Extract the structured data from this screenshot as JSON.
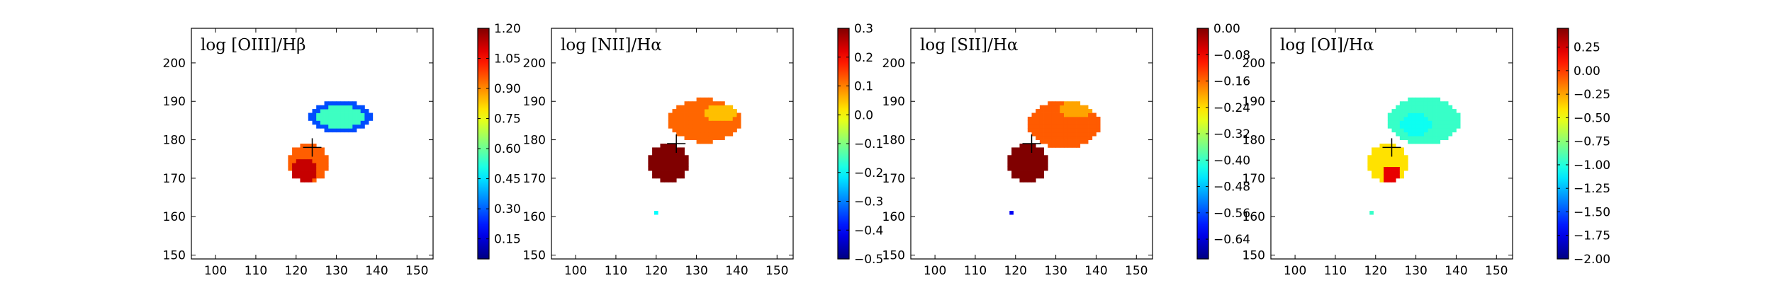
{
  "chart_data": [
    {
      "type": "heatmap",
      "title": "log [OIII]/Hβ",
      "xlim": [
        94,
        154
      ],
      "ylim": [
        149,
        209
      ],
      "x_ticks": [
        100,
        110,
        120,
        130,
        140,
        150
      ],
      "y_ticks": [
        150,
        160,
        170,
        180,
        190,
        200
      ],
      "marker": {
        "symbol": "+",
        "x": 124,
        "y": 178
      },
      "colorbar": {
        "vmin": 0.05,
        "vmax": 1.2,
        "ticks": [
          0.15,
          0.3,
          0.45,
          0.6,
          0.75,
          0.9,
          1.05,
          1.2
        ],
        "tick_labels": [
          "0.15",
          "0.30",
          "0.45",
          "0.60",
          "0.75",
          "0.90",
          "1.05",
          "1.20"
        ]
      },
      "regions": [
        {
          "name": "north",
          "cx": 131,
          "cy": 186,
          "rx": 8,
          "ry": 4.2,
          "value": 0.28,
          "inner": {
            "cx": 131,
            "cy": 186,
            "rx": 6,
            "ry": 3,
            "value": 0.55
          }
        },
        {
          "name": "south",
          "cx": 123,
          "cy": 174,
          "rx": 4.8,
          "ry": 5.2,
          "value": 0.95,
          "inner": {
            "cx": 122,
            "cy": 172,
            "rx": 3,
            "ry": 3,
            "value": 1.12
          }
        }
      ],
      "outlier": null
    },
    {
      "type": "heatmap",
      "title": "log [NII]/Hα",
      "xlim": [
        94,
        154
      ],
      "ylim": [
        149,
        209
      ],
      "x_ticks": [
        100,
        110,
        120,
        130,
        140,
        150
      ],
      "y_ticks": [
        150,
        160,
        170,
        180,
        190,
        200
      ],
      "marker": {
        "symbol": "+",
        "x": 125,
        "y": 179
      },
      "colorbar": {
        "vmin": -0.5,
        "vmax": 0.3,
        "ticks": [
          -0.5,
          -0.4,
          -0.3,
          -0.2,
          -0.1,
          0.0,
          0.1,
          0.2,
          0.3
        ],
        "tick_labels": [
          "−0.5",
          "−0.4",
          "−0.3",
          "−0.2",
          "−0.1",
          "0.0",
          "0.1",
          "0.2",
          "0.3"
        ]
      },
      "regions": [
        {
          "name": "north",
          "cx": 132,
          "cy": 185,
          "rx": 9,
          "ry": 5.6,
          "value": 0.12,
          "inner": {
            "cx": 136,
            "cy": 187,
            "rx": 4,
            "ry": 2.5,
            "value": 0.05
          }
        },
        {
          "name": "south",
          "cx": 123,
          "cy": 174,
          "rx": 4.8,
          "ry": 5.2,
          "value": 0.3,
          "inner": null
        }
      ],
      "outlier": {
        "x": 120,
        "y": 161,
        "value": -0.2
      }
    },
    {
      "type": "heatmap",
      "title": "log [SII]/Hα",
      "xlim": [
        94,
        154
      ],
      "ylim": [
        149,
        209
      ],
      "x_ticks": [
        100,
        110,
        120,
        130,
        140,
        150
      ],
      "y_ticks": [
        150,
        160,
        170,
        180,
        190,
        200
      ],
      "marker": {
        "symbol": "+",
        "x": 124,
        "y": 179
      },
      "colorbar": {
        "vmin": -0.7,
        "vmax": 0.0,
        "ticks": [
          -0.64,
          -0.56,
          -0.48,
          -0.4,
          -0.32,
          -0.24,
          -0.16,
          -0.08,
          0.0
        ],
        "tick_labels": [
          "−0.64",
          "−0.56",
          "−0.48",
          "−0.40",
          "−0.32",
          "−0.24",
          "−0.16",
          "−0.08",
          "0.00"
        ]
      },
      "regions": [
        {
          "name": "north",
          "cx": 132,
          "cy": 184,
          "rx": 9,
          "ry": 6,
          "value": -0.15,
          "inner": {
            "cx": 135,
            "cy": 188,
            "rx": 4,
            "ry": 2.5,
            "value": -0.2
          }
        },
        {
          "name": "south",
          "cx": 123,
          "cy": 174,
          "rx": 4.8,
          "ry": 5.2,
          "value": 0.0,
          "inner": null
        }
      ],
      "outlier": {
        "x": 119,
        "y": 161,
        "value": -0.62
      }
    },
    {
      "type": "heatmap",
      "title": "log [OI]/Hα",
      "xlim": [
        94,
        154
      ],
      "ylim": [
        149,
        209
      ],
      "x_ticks": [
        100,
        110,
        120,
        130,
        140,
        150
      ],
      "y_ticks": [
        150,
        160,
        170,
        180,
        190,
        200
      ],
      "marker": {
        "symbol": "+",
        "x": 124,
        "y": 178
      },
      "colorbar": {
        "vmin": -2.0,
        "vmax": 0.45,
        "ticks": [
          -2.0,
          -1.75,
          -1.5,
          -1.25,
          -1.0,
          -0.75,
          -0.5,
          -0.25,
          0.0,
          0.25
        ],
        "tick_labels": [
          "−2.00",
          "−1.75",
          "−1.50",
          "−1.25",
          "−1.00",
          "−0.75",
          "−0.50",
          "−0.25",
          "0.00",
          "0.25"
        ]
      },
      "regions": [
        {
          "name": "north",
          "cx": 132,
          "cy": 185,
          "rx": 9,
          "ry": 6,
          "value": -0.95,
          "inner": {
            "cx": 130,
            "cy": 184,
            "rx": 4,
            "ry": 3,
            "value": -1.05
          }
        },
        {
          "name": "south",
          "cx": 123,
          "cy": 174,
          "rx": 4.8,
          "ry": 5.2,
          "value": -0.4,
          "inner": {
            "cx": 124,
            "cy": 171,
            "rx": 2.5,
            "ry": 2,
            "value": 0.2
          }
        }
      ],
      "outlier": {
        "x": 119,
        "y": 161,
        "value": -0.95
      }
    }
  ]
}
